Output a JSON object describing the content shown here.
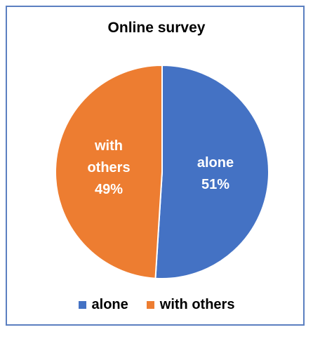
{
  "chart_data": {
    "type": "pie",
    "title": "Online survey",
    "categories": [
      "alone",
      "with others"
    ],
    "values": [
      51,
      49
    ],
    "labels": [
      {
        "lines": [
          "alone",
          "51%"
        ]
      },
      {
        "lines": [
          "with",
          "others",
          "49%"
        ]
      }
    ],
    "colors": [
      "#4472c4",
      "#ed7d31"
    ],
    "legend_position": "bottom"
  }
}
